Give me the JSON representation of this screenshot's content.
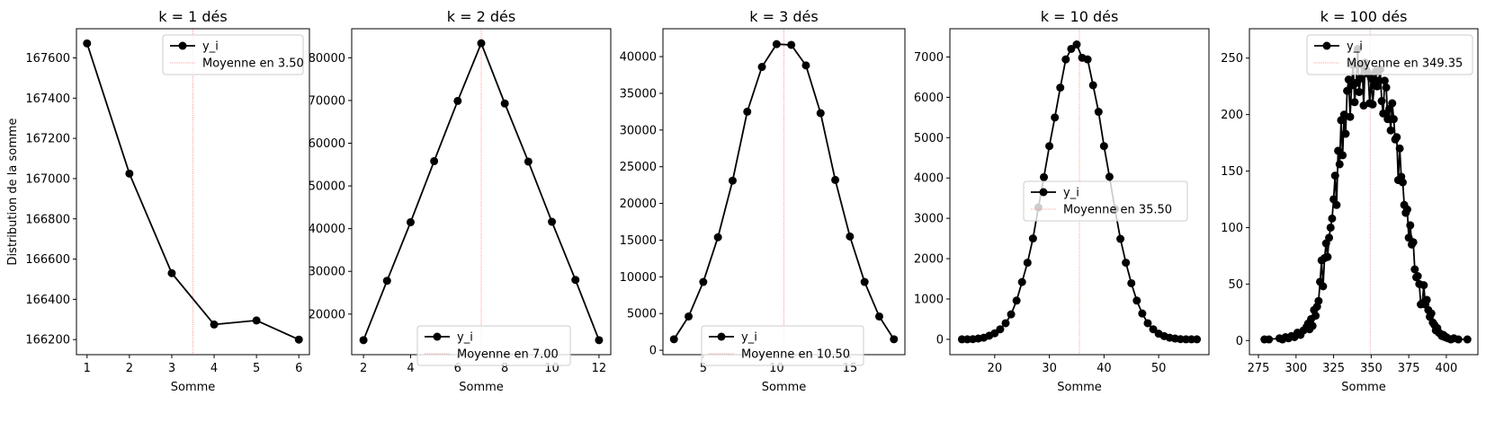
{
  "chart_data": [
    {
      "type": "line",
      "title": "k = 1 dés",
      "xlabel": "Somme",
      "ylabel": "Distribution de la somme",
      "xlim": [
        0.75,
        6.25
      ],
      "ylim": [
        166125,
        167745
      ],
      "xticks": [
        1,
        2,
        3,
        4,
        5,
        6
      ],
      "yticks": [
        166200,
        166400,
        166600,
        166800,
        167000,
        167200,
        167400,
        167600
      ],
      "legend_loc": "upper right",
      "mean": 3.5,
      "series": [
        {
          "name": "y_i",
          "x": [
            1,
            2,
            3,
            4,
            5,
            6
          ],
          "y": [
            167672,
            167025,
            166530,
            166275,
            166295,
            166200
          ]
        },
        {
          "name": "Moyenne en 3.50",
          "kind": "vline",
          "x": 3.5
        }
      ]
    },
    {
      "type": "line",
      "title": "k = 2 dés",
      "xlabel": "Somme",
      "ylabel": "",
      "xlim": [
        1.5,
        12.5
      ],
      "ylim": [
        10500,
        86800
      ],
      "xticks": [
        2,
        4,
        6,
        8,
        10,
        12
      ],
      "yticks": [
        20000,
        30000,
        40000,
        50000,
        60000,
        70000,
        80000
      ],
      "legend_loc": "lower center",
      "mean": 7.0,
      "series": [
        {
          "name": "y_i",
          "x": [
            2,
            3,
            4,
            5,
            6,
            7,
            8,
            9,
            10,
            11,
            12
          ],
          "y": [
            13900,
            27800,
            41500,
            55800,
            69900,
            83400,
            69300,
            55700,
            41600,
            28000,
            13900
          ]
        },
        {
          "name": "Moyenne en 7.00",
          "kind": "vline",
          "x": 7.0
        }
      ]
    },
    {
      "type": "line",
      "title": "k = 3 dés",
      "xlabel": "Somme",
      "ylabel": "",
      "xlim": [
        2.25,
        18.75
      ],
      "ylim": [
        -600,
        43800
      ],
      "xticks": [
        5,
        10,
        15
      ],
      "yticks": [
        0,
        5000,
        10000,
        15000,
        20000,
        25000,
        30000,
        35000,
        40000
      ],
      "legend_loc": "lower center",
      "mean": 10.5,
      "series": [
        {
          "name": "y_i",
          "x": [
            3,
            4,
            5,
            6,
            7,
            8,
            9,
            10,
            11,
            12,
            13,
            14,
            15,
            16,
            17,
            18
          ],
          "y": [
            1500,
            4600,
            9300,
            15400,
            23100,
            32500,
            38600,
            41700,
            41600,
            38800,
            32300,
            23200,
            15500,
            9300,
            4600,
            1500
          ]
        },
        {
          "name": "Moyenne en 10.50",
          "kind": "vline",
          "x": 10.5
        }
      ]
    },
    {
      "type": "line",
      "title": "k = 10 dés",
      "xlabel": "Somme",
      "ylabel": "",
      "xlim": [
        11.8,
        59.2
      ],
      "ylim": [
        -380,
        7700
      ],
      "xticks": [
        20,
        30,
        40,
        50
      ],
      "yticks": [
        0,
        1000,
        2000,
        3000,
        4000,
        5000,
        6000,
        7000
      ],
      "legend_loc": "center right",
      "mean": 35.5,
      "series": [
        {
          "name": "y_i",
          "x": [
            14,
            15,
            16,
            17,
            18,
            19,
            20,
            21,
            22,
            23,
            24,
            25,
            26,
            27,
            28,
            29,
            30,
            31,
            32,
            33,
            34,
            35,
            36,
            37,
            38,
            39,
            40,
            41,
            42,
            43,
            44,
            45,
            46,
            47,
            48,
            49,
            50,
            51,
            52,
            53,
            54,
            55,
            56,
            57
          ],
          "y": [
            0,
            0,
            5,
            20,
            40,
            90,
            150,
            250,
            400,
            620,
            960,
            1420,
            1900,
            2500,
            3270,
            4020,
            4790,
            5500,
            6240,
            6940,
            7200,
            7310,
            6980,
            6940,
            6300,
            5640,
            4790,
            4030,
            3230,
            2490,
            1900,
            1390,
            960,
            640,
            400,
            250,
            140,
            80,
            40,
            20,
            5,
            0,
            0,
            0
          ]
        },
        {
          "name": "Moyenne en 35.50",
          "kind": "vline",
          "x": 35.5
        }
      ]
    },
    {
      "type": "line",
      "title": "k = 100 dés",
      "xlabel": "Somme",
      "ylabel": "",
      "xlim": [
        269,
        421
      ],
      "ylim": [
        -12.5,
        276
      ],
      "xticks": [
        275,
        300,
        325,
        350,
        375,
        400
      ],
      "yticks": [
        0,
        50,
        100,
        150,
        200,
        250
      ],
      "legend_loc": "upper right",
      "mean": 349.35,
      "series": [
        {
          "name": "y_i",
          "x": [
            279,
            282,
            289,
            291,
            293,
            295,
            297,
            299,
            301,
            303,
            305,
            307,
            308,
            309,
            310,
            311,
            312,
            313,
            314,
            315,
            316,
            317,
            318,
            319,
            320,
            321,
            322,
            323,
            324,
            325,
            326,
            327,
            328,
            329,
            330,
            331,
            332,
            333,
            334,
            335,
            336,
            337,
            338,
            339,
            340,
            341,
            342,
            343,
            344,
            345,
            346,
            347,
            348,
            349,
            350,
            351,
            352,
            353,
            354,
            355,
            356,
            357,
            358,
            359,
            360,
            361,
            362,
            363,
            364,
            365,
            366,
            367,
            368,
            369,
            370,
            371,
            372,
            373,
            374,
            375,
            376,
            377,
            378,
            379,
            380,
            381,
            382,
            383,
            384,
            385,
            386,
            387,
            388,
            389,
            390,
            391,
            392,
            393,
            394,
            395,
            396,
            397,
            398,
            399,
            400,
            401,
            403,
            405,
            408,
            414
          ],
          "y": [
            1,
            1,
            2,
            1,
            3,
            2,
            4,
            3,
            7,
            5,
            9,
            12,
            15,
            10,
            19,
            13,
            27,
            22,
            30,
            35,
            52,
            71,
            48,
            73,
            86,
            74,
            91,
            100,
            108,
            125,
            146,
            120,
            168,
            156,
            195,
            164,
            200,
            183,
            221,
            231,
            198,
            226,
            244,
            211,
            228,
            258,
            220,
            232,
            244,
            208,
            246,
            239,
            236,
            210,
            232,
            209,
            226,
            238,
            225,
            230,
            240,
            212,
            201,
            230,
            224,
            196,
            205,
            186,
            210,
            196,
            178,
            180,
            142,
            170,
            145,
            140,
            120,
            113,
            116,
            91,
            102,
            85,
            87,
            63,
            56,
            57,
            50,
            32,
            33,
            49,
            32,
            36,
            27,
            21,
            24,
            16,
            14,
            9,
            11,
            7,
            6,
            4,
            5,
            3,
            3,
            2,
            1,
            2,
            1,
            1
          ]
        },
        {
          "name": "Moyenne en 349.35",
          "kind": "vline",
          "x": 349.35
        }
      ]
    }
  ]
}
